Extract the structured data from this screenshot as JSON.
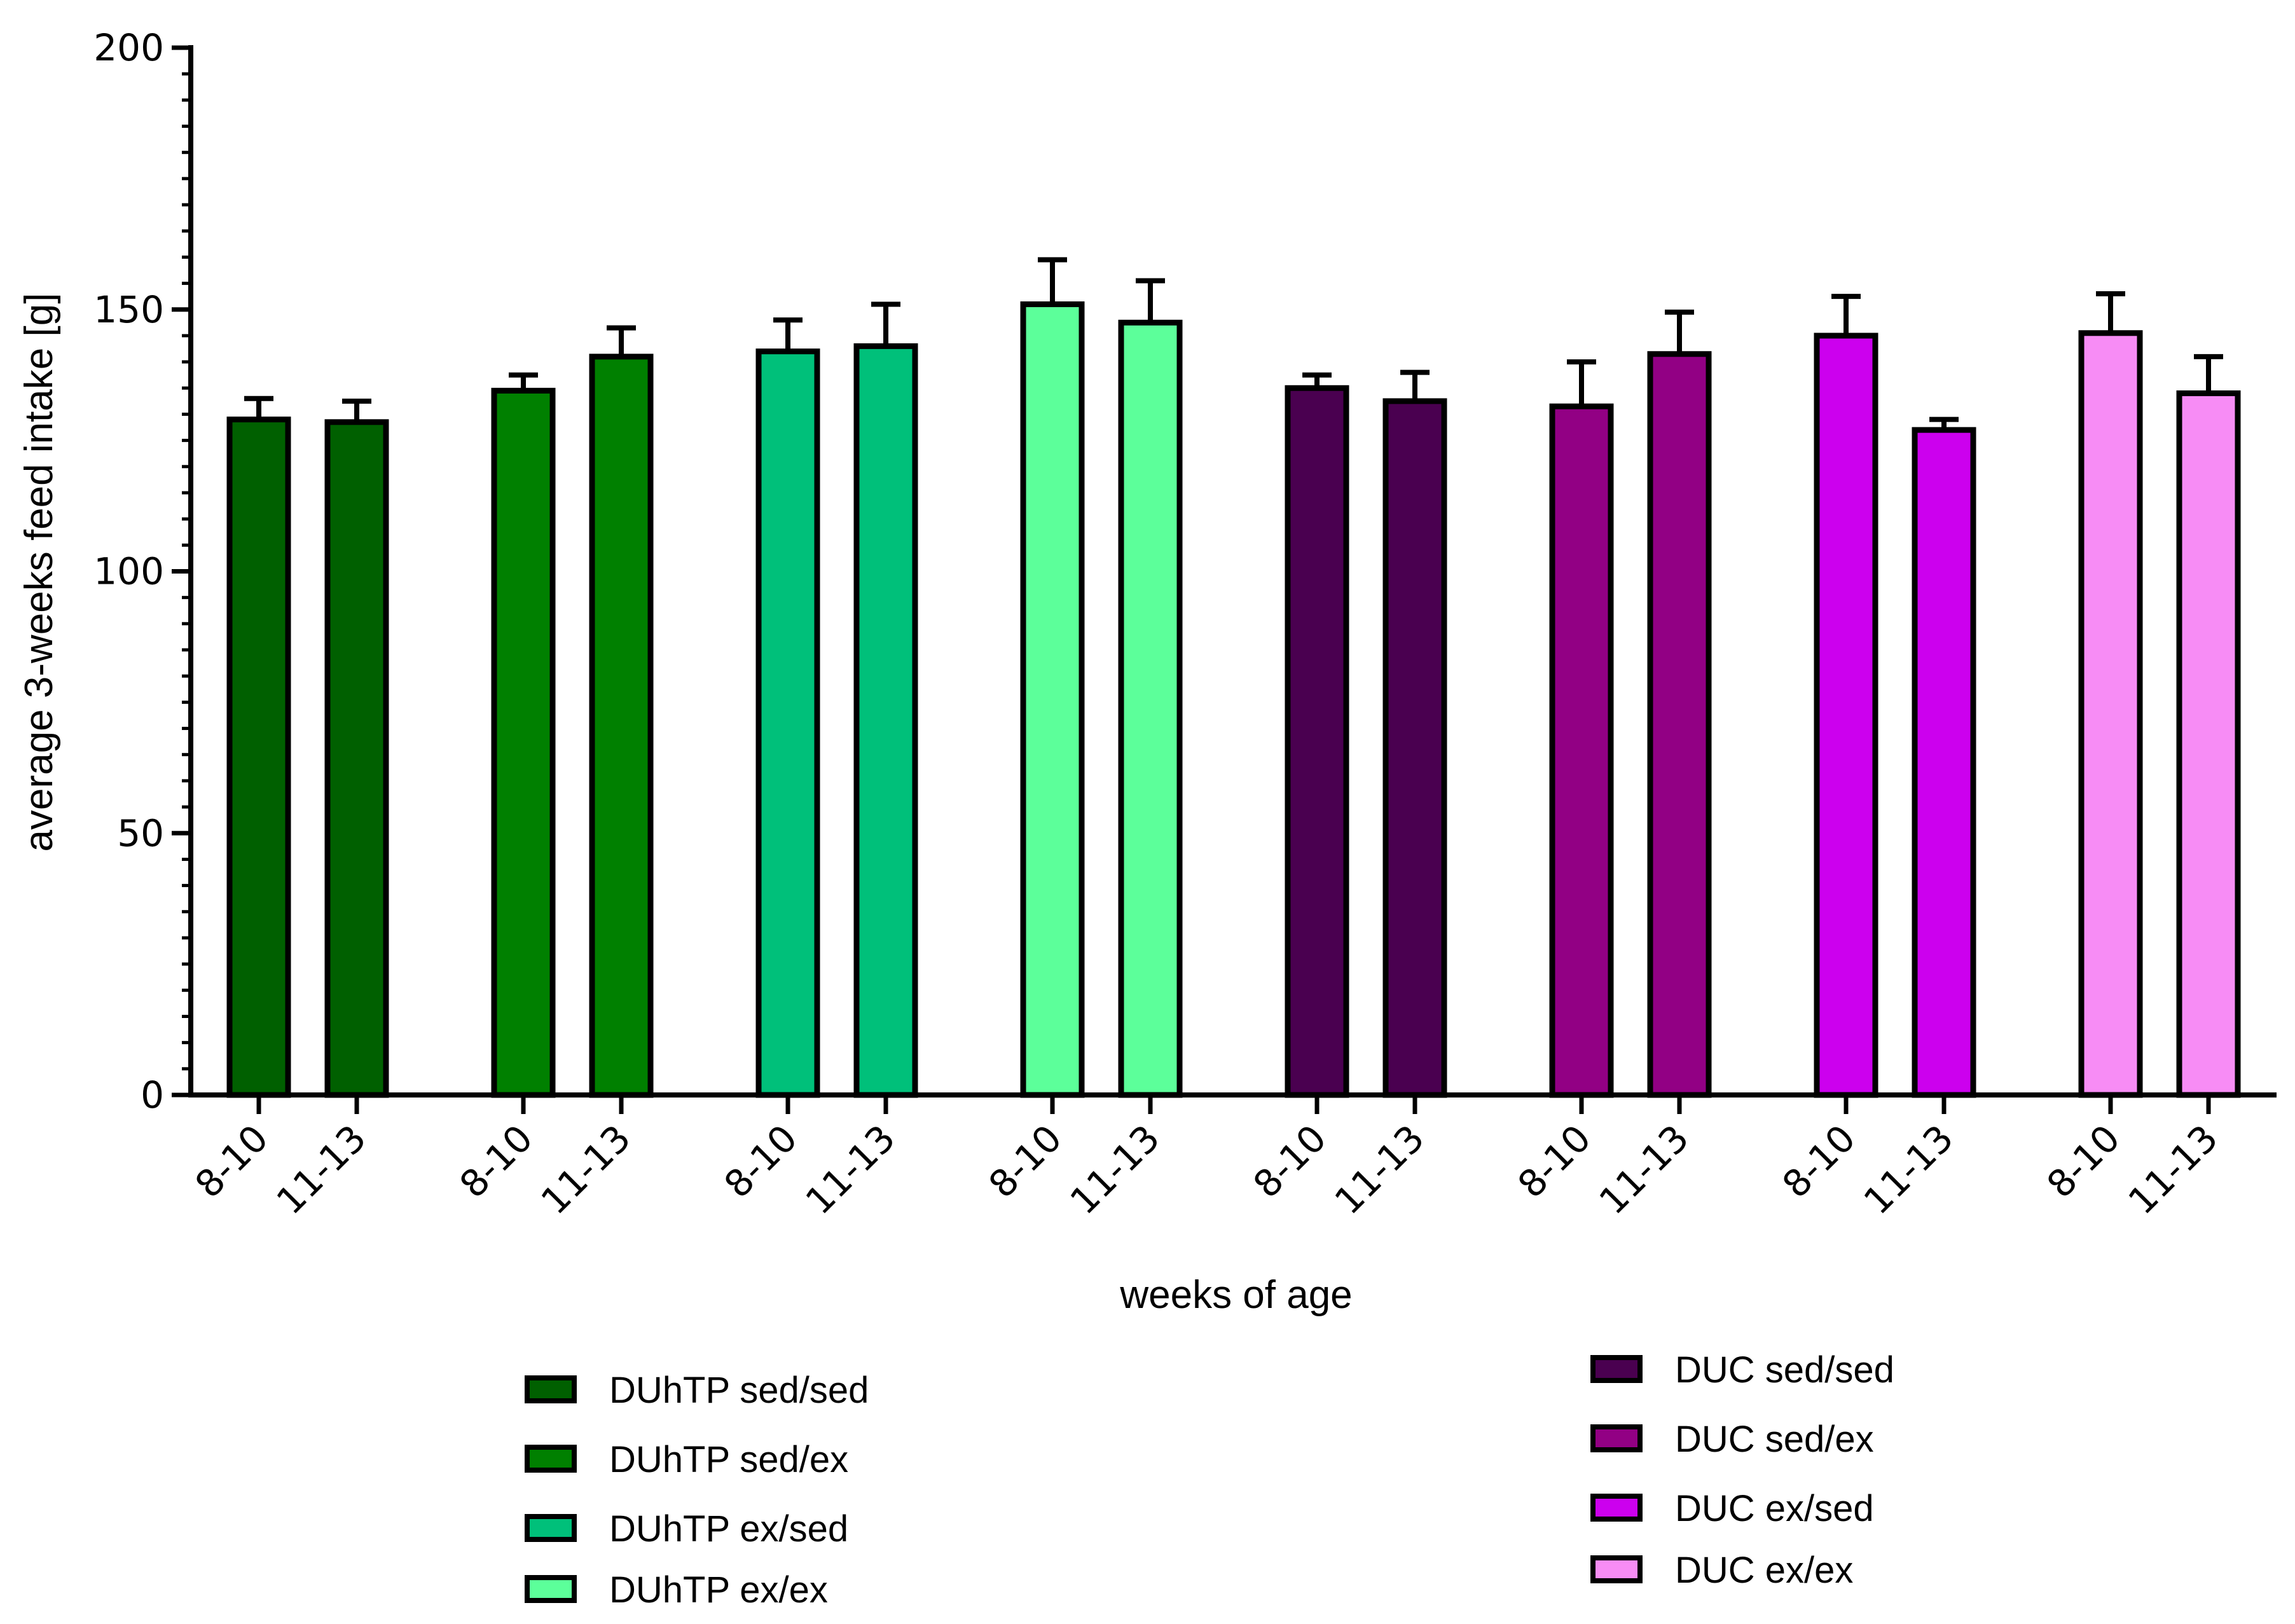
{
  "chart_data": {
    "type": "bar",
    "ylabel": "average 3-weeks feed intake [g]",
    "xlabel": "weeks of age",
    "ylim": [
      0,
      200
    ],
    "yticks": [
      0,
      50,
      100,
      150,
      200
    ],
    "y_minor_step": 5,
    "categories": [
      "8-10",
      "11-13"
    ],
    "series": [
      {
        "name": "DUhTP sed/sed",
        "color": "#006000",
        "values": [
          129,
          128.5
        ],
        "errors": [
          4,
          4
        ]
      },
      {
        "name": "DUhTP sed/ex",
        "color": "#008000",
        "values": [
          134.5,
          141
        ],
        "errors": [
          3,
          5.5
        ]
      },
      {
        "name": "DUhTP ex/sed",
        "color": "#00C07A",
        "values": [
          142,
          143
        ],
        "errors": [
          6,
          8
        ]
      },
      {
        "name": "DUhTP ex/ex",
        "color": "#5CFF9A",
        "values": [
          151,
          147.5
        ],
        "errors": [
          8.5,
          8
        ]
      },
      {
        "name": "DUC sed/sed",
        "color": "#4A0050",
        "values": [
          135,
          132.5
        ],
        "errors": [
          2.5,
          5.5
        ]
      },
      {
        "name": "DUC sed/ex",
        "color": "#920084",
        "values": [
          131.5,
          141.5
        ],
        "errors": [
          8.5,
          8
        ]
      },
      {
        "name": "DUC ex/sed",
        "color": "#CC00EE",
        "values": [
          145,
          127
        ],
        "errors": [
          7.5,
          2
        ]
      },
      {
        "name": "DUC ex/ex",
        "color": "#F78CF5",
        "values": [
          145.5,
          134
        ],
        "errors": [
          7.5,
          7
        ]
      }
    ],
    "grid": false,
    "legend_placement": "bottom, two columns"
  }
}
